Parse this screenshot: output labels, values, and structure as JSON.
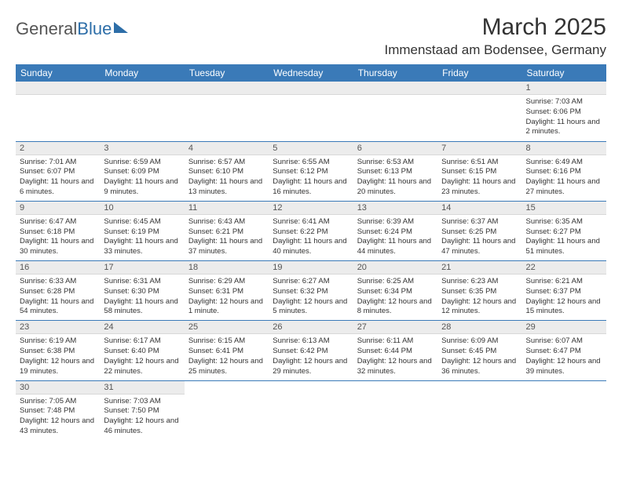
{
  "logo": {
    "part1": "General",
    "part2": "Blue"
  },
  "header": {
    "month": "March 2025",
    "location": "Immenstaad am Bodensee, Germany"
  },
  "weekdays": [
    "Sunday",
    "Monday",
    "Tuesday",
    "Wednesday",
    "Thursday",
    "Friday",
    "Saturday"
  ],
  "colors": {
    "header_bg": "#3a7ab8",
    "daynum_bg": "#ececec"
  },
  "weeks": [
    [
      {
        "n": "",
        "l1": "",
        "l2": "",
        "l3": ""
      },
      {
        "n": "",
        "l1": "",
        "l2": "",
        "l3": ""
      },
      {
        "n": "",
        "l1": "",
        "l2": "",
        "l3": ""
      },
      {
        "n": "",
        "l1": "",
        "l2": "",
        "l3": ""
      },
      {
        "n": "",
        "l1": "",
        "l2": "",
        "l3": ""
      },
      {
        "n": "",
        "l1": "",
        "l2": "",
        "l3": ""
      },
      {
        "n": "1",
        "l1": "Sunrise: 7:03 AM",
        "l2": "Sunset: 6:06 PM",
        "l3": "Daylight: 11 hours and 2 minutes."
      }
    ],
    [
      {
        "n": "2",
        "l1": "Sunrise: 7:01 AM",
        "l2": "Sunset: 6:07 PM",
        "l3": "Daylight: 11 hours and 6 minutes."
      },
      {
        "n": "3",
        "l1": "Sunrise: 6:59 AM",
        "l2": "Sunset: 6:09 PM",
        "l3": "Daylight: 11 hours and 9 minutes."
      },
      {
        "n": "4",
        "l1": "Sunrise: 6:57 AM",
        "l2": "Sunset: 6:10 PM",
        "l3": "Daylight: 11 hours and 13 minutes."
      },
      {
        "n": "5",
        "l1": "Sunrise: 6:55 AM",
        "l2": "Sunset: 6:12 PM",
        "l3": "Daylight: 11 hours and 16 minutes."
      },
      {
        "n": "6",
        "l1": "Sunrise: 6:53 AM",
        "l2": "Sunset: 6:13 PM",
        "l3": "Daylight: 11 hours and 20 minutes."
      },
      {
        "n": "7",
        "l1": "Sunrise: 6:51 AM",
        "l2": "Sunset: 6:15 PM",
        "l3": "Daylight: 11 hours and 23 minutes."
      },
      {
        "n": "8",
        "l1": "Sunrise: 6:49 AM",
        "l2": "Sunset: 6:16 PM",
        "l3": "Daylight: 11 hours and 27 minutes."
      }
    ],
    [
      {
        "n": "9",
        "l1": "Sunrise: 6:47 AM",
        "l2": "Sunset: 6:18 PM",
        "l3": "Daylight: 11 hours and 30 minutes."
      },
      {
        "n": "10",
        "l1": "Sunrise: 6:45 AM",
        "l2": "Sunset: 6:19 PM",
        "l3": "Daylight: 11 hours and 33 minutes."
      },
      {
        "n": "11",
        "l1": "Sunrise: 6:43 AM",
        "l2": "Sunset: 6:21 PM",
        "l3": "Daylight: 11 hours and 37 minutes."
      },
      {
        "n": "12",
        "l1": "Sunrise: 6:41 AM",
        "l2": "Sunset: 6:22 PM",
        "l3": "Daylight: 11 hours and 40 minutes."
      },
      {
        "n": "13",
        "l1": "Sunrise: 6:39 AM",
        "l2": "Sunset: 6:24 PM",
        "l3": "Daylight: 11 hours and 44 minutes."
      },
      {
        "n": "14",
        "l1": "Sunrise: 6:37 AM",
        "l2": "Sunset: 6:25 PM",
        "l3": "Daylight: 11 hours and 47 minutes."
      },
      {
        "n": "15",
        "l1": "Sunrise: 6:35 AM",
        "l2": "Sunset: 6:27 PM",
        "l3": "Daylight: 11 hours and 51 minutes."
      }
    ],
    [
      {
        "n": "16",
        "l1": "Sunrise: 6:33 AM",
        "l2": "Sunset: 6:28 PM",
        "l3": "Daylight: 11 hours and 54 minutes."
      },
      {
        "n": "17",
        "l1": "Sunrise: 6:31 AM",
        "l2": "Sunset: 6:30 PM",
        "l3": "Daylight: 11 hours and 58 minutes."
      },
      {
        "n": "18",
        "l1": "Sunrise: 6:29 AM",
        "l2": "Sunset: 6:31 PM",
        "l3": "Daylight: 12 hours and 1 minute."
      },
      {
        "n": "19",
        "l1": "Sunrise: 6:27 AM",
        "l2": "Sunset: 6:32 PM",
        "l3": "Daylight: 12 hours and 5 minutes."
      },
      {
        "n": "20",
        "l1": "Sunrise: 6:25 AM",
        "l2": "Sunset: 6:34 PM",
        "l3": "Daylight: 12 hours and 8 minutes."
      },
      {
        "n": "21",
        "l1": "Sunrise: 6:23 AM",
        "l2": "Sunset: 6:35 PM",
        "l3": "Daylight: 12 hours and 12 minutes."
      },
      {
        "n": "22",
        "l1": "Sunrise: 6:21 AM",
        "l2": "Sunset: 6:37 PM",
        "l3": "Daylight: 12 hours and 15 minutes."
      }
    ],
    [
      {
        "n": "23",
        "l1": "Sunrise: 6:19 AM",
        "l2": "Sunset: 6:38 PM",
        "l3": "Daylight: 12 hours and 19 minutes."
      },
      {
        "n": "24",
        "l1": "Sunrise: 6:17 AM",
        "l2": "Sunset: 6:40 PM",
        "l3": "Daylight: 12 hours and 22 minutes."
      },
      {
        "n": "25",
        "l1": "Sunrise: 6:15 AM",
        "l2": "Sunset: 6:41 PM",
        "l3": "Daylight: 12 hours and 25 minutes."
      },
      {
        "n": "26",
        "l1": "Sunrise: 6:13 AM",
        "l2": "Sunset: 6:42 PM",
        "l3": "Daylight: 12 hours and 29 minutes."
      },
      {
        "n": "27",
        "l1": "Sunrise: 6:11 AM",
        "l2": "Sunset: 6:44 PM",
        "l3": "Daylight: 12 hours and 32 minutes."
      },
      {
        "n": "28",
        "l1": "Sunrise: 6:09 AM",
        "l2": "Sunset: 6:45 PM",
        "l3": "Daylight: 12 hours and 36 minutes."
      },
      {
        "n": "29",
        "l1": "Sunrise: 6:07 AM",
        "l2": "Sunset: 6:47 PM",
        "l3": "Daylight: 12 hours and 39 minutes."
      }
    ],
    [
      {
        "n": "30",
        "l1": "Sunrise: 7:05 AM",
        "l2": "Sunset: 7:48 PM",
        "l3": "Daylight: 12 hours and 43 minutes."
      },
      {
        "n": "31",
        "l1": "Sunrise: 7:03 AM",
        "l2": "Sunset: 7:50 PM",
        "l3": "Daylight: 12 hours and 46 minutes."
      },
      {
        "n": "",
        "l1": "",
        "l2": "",
        "l3": ""
      },
      {
        "n": "",
        "l1": "",
        "l2": "",
        "l3": ""
      },
      {
        "n": "",
        "l1": "",
        "l2": "",
        "l3": ""
      },
      {
        "n": "",
        "l1": "",
        "l2": "",
        "l3": ""
      },
      {
        "n": "",
        "l1": "",
        "l2": "",
        "l3": ""
      }
    ]
  ]
}
